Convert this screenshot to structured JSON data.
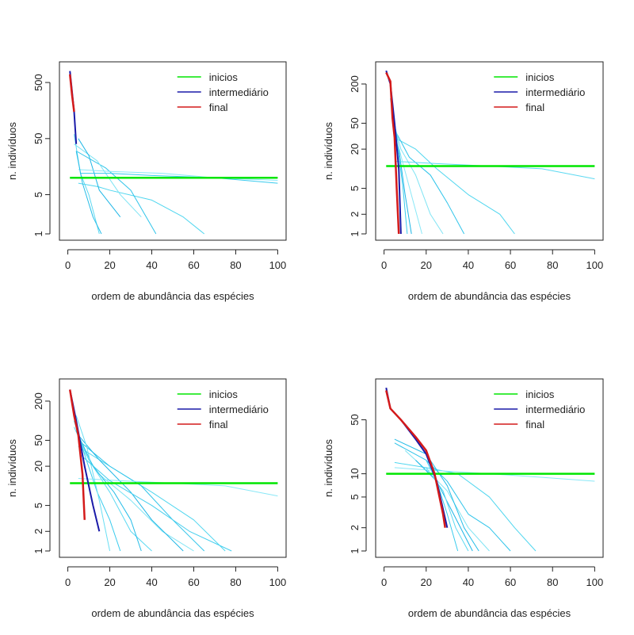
{
  "chart_data": [
    {
      "type": "line",
      "title": "",
      "xlabel": "ordem de abundância das espécies",
      "ylabel": "n. indivíduos",
      "xlim": [
        0,
        100
      ],
      "ylim_log": [
        1,
        900
      ],
      "y_scale": "log",
      "xticks": [
        0,
        20,
        40,
        60,
        80,
        100
      ],
      "yticks": [
        1,
        5,
        50,
        500
      ],
      "legend": {
        "position": "top-right",
        "entries": [
          {
            "label": "inicios",
            "color": "#00e600"
          },
          {
            "label": "intermediário",
            "color": "#1a1aa8"
          },
          {
            "label": "final",
            "color": "#d41a1a"
          }
        ]
      },
      "horizontal_line": {
        "series": "inicios",
        "y": 10
      },
      "final_curve": {
        "series": "final",
        "x": [
          1,
          2,
          3
        ],
        "y": [
          700,
          300,
          150
        ]
      },
      "intermediate_curve": {
        "series": "intermediário",
        "x": [
          1,
          2,
          3,
          4
        ],
        "y": [
          800,
          350,
          150,
          40
        ]
      },
      "cyan_tails": [
        {
          "x": [
            5,
            14,
            20,
            40,
            55,
            65
          ],
          "y": [
            8,
            7,
            6,
            4,
            2,
            1
          ]
        },
        {
          "x": [
            4,
            18,
            30,
            42
          ],
          "y": [
            30,
            15,
            6,
            1
          ]
        },
        {
          "x": [
            3,
            14,
            25,
            35
          ],
          "y": [
            40,
            20,
            5,
            2
          ]
        },
        {
          "x": [
            5,
            10,
            15,
            25
          ],
          "y": [
            50,
            25,
            6,
            2
          ]
        },
        {
          "x": [
            3,
            6,
            10,
            15
          ],
          "y": [
            60,
            12,
            5,
            1
          ]
        },
        {
          "x": [
            6,
            20,
            40,
            70,
            100
          ],
          "y": [
            12,
            12,
            11,
            10,
            8
          ]
        },
        {
          "x": [
            5,
            20,
            45,
            70,
            100
          ],
          "y": [
            14,
            13,
            12,
            10,
            9
          ]
        },
        {
          "x": [
            4,
            7,
            12,
            16
          ],
          "y": [
            30,
            8,
            2,
            1
          ]
        }
      ]
    },
    {
      "type": "line",
      "title": "",
      "xlabel": "ordem de abundância das espécies",
      "ylabel": "n. indivíduos",
      "xlim": [
        0,
        100
      ],
      "ylim_log": [
        1,
        350
      ],
      "y_scale": "log",
      "xticks": [
        0,
        20,
        40,
        60,
        80,
        100
      ],
      "yticks": [
        1,
        2,
        5,
        20,
        50,
        200
      ],
      "legend": {
        "position": "top-right",
        "entries": [
          {
            "label": "inicios",
            "color": "#00e600"
          },
          {
            "label": "intermediário",
            "color": "#1a1aa8"
          },
          {
            "label": "final",
            "color": "#d41a1a"
          }
        ]
      },
      "horizontal_line": {
        "series": "inicios",
        "y": 11
      },
      "final_curve": {
        "series": "final",
        "x": [
          1,
          3,
          4,
          5,
          6,
          7
        ],
        "y": [
          300,
          220,
          60,
          30,
          5,
          1
        ]
      },
      "intermediate_curve": {
        "series": "intermediário",
        "x": [
          1,
          3,
          5,
          7,
          8
        ],
        "y": [
          320,
          200,
          50,
          10,
          1
        ]
      },
      "cyan_tails": [
        {
          "x": [
            5,
            15,
            25,
            40,
            55,
            62
          ],
          "y": [
            30,
            20,
            10,
            4,
            2,
            1
          ]
        },
        {
          "x": [
            5,
            12,
            22,
            30,
            38
          ],
          "y": [
            40,
            15,
            8,
            3,
            1
          ]
        },
        {
          "x": [
            4,
            8,
            15,
            22,
            28
          ],
          "y": [
            60,
            20,
            8,
            2,
            1
          ]
        },
        {
          "x": [
            4,
            7,
            10,
            13
          ],
          "y": [
            80,
            20,
            4,
            1
          ]
        },
        {
          "x": [
            5,
            25,
            50,
            75,
            100
          ],
          "y": [
            13,
            12,
            11,
            10,
            7
          ]
        },
        {
          "x": [
            3,
            6,
            9,
            11
          ],
          "y": [
            120,
            30,
            5,
            1
          ]
        },
        {
          "x": [
            4,
            9,
            14,
            18
          ],
          "y": [
            50,
            12,
            3,
            1
          ]
        }
      ]
    },
    {
      "type": "line",
      "title": "",
      "xlabel": "ordem de abundância das espécies",
      "ylabel": "n. indivíduos",
      "xlim": [
        0,
        100
      ],
      "ylim_log": [
        1,
        350
      ],
      "y_scale": "log",
      "xticks": [
        0,
        20,
        40,
        60,
        80,
        100
      ],
      "yticks": [
        1,
        2,
        5,
        20,
        50,
        200
      ],
      "legend": {
        "position": "top-right",
        "entries": [
          {
            "label": "inicios",
            "color": "#00e600"
          },
          {
            "label": "intermediário",
            "color": "#1a1aa8"
          },
          {
            "label": "final",
            "color": "#d41a1a"
          }
        ]
      },
      "horizontal_line": {
        "series": "inicios",
        "y": 11
      },
      "final_curve": {
        "series": "final",
        "x": [
          1,
          3,
          5,
          7,
          8
        ],
        "y": [
          300,
          120,
          60,
          15,
          3
        ]
      },
      "intermediate_curve": {
        "series": "intermediário",
        "x": [
          1,
          4,
          8,
          12,
          15
        ],
        "y": [
          300,
          100,
          20,
          5,
          2
        ]
      },
      "cyan_tails": [
        {
          "x": [
            5,
            20,
            40,
            60,
            75
          ],
          "y": [
            40,
            20,
            8,
            3,
            1
          ]
        },
        {
          "x": [
            5,
            20,
            35,
            50,
            65
          ],
          "y": [
            50,
            20,
            10,
            3,
            1
          ]
        },
        {
          "x": [
            6,
            15,
            30,
            45,
            60
          ],
          "y": [
            40,
            15,
            6,
            2,
            1
          ]
        },
        {
          "x": [
            5,
            15,
            30,
            40,
            55
          ],
          "y": [
            60,
            25,
            8,
            3,
            1
          ]
        },
        {
          "x": [
            3,
            10,
            20,
            30,
            40
          ],
          "y": [
            80,
            25,
            8,
            2,
            1
          ]
        },
        {
          "x": [
            3,
            8,
            14,
            20,
            25
          ],
          "y": [
            100,
            30,
            8,
            3,
            1
          ]
        },
        {
          "x": [
            5,
            25,
            50,
            75,
            100
          ],
          "y": [
            13,
            12,
            11,
            10,
            7
          ]
        },
        {
          "x": [
            4,
            12,
            22,
            30,
            35
          ],
          "y": [
            70,
            20,
            8,
            3,
            1
          ]
        },
        {
          "x": [
            4,
            9,
            15,
            20
          ],
          "y": [
            120,
            40,
            6,
            1
          ]
        },
        {
          "x": [
            6,
            20,
            40,
            58,
            78
          ],
          "y": [
            30,
            12,
            5,
            2,
            1
          ]
        }
      ]
    },
    {
      "type": "line",
      "title": "",
      "xlabel": "ordem de abundância das espécies",
      "ylabel": "n. indivíduos",
      "xlim": [
        0,
        100
      ],
      "ylim_log": [
        1,
        140
      ],
      "y_scale": "log",
      "xticks": [
        0,
        20,
        40,
        60,
        80,
        100
      ],
      "yticks": [
        1,
        2,
        5,
        10,
        50
      ],
      "legend": {
        "position": "top-right",
        "entries": [
          {
            "label": "inicios",
            "color": "#00e600"
          },
          {
            "label": "intermediário",
            "color": "#1a1aa8"
          },
          {
            "label": "final",
            "color": "#d41a1a"
          }
        ]
      },
      "horizontal_line": {
        "series": "inicios",
        "y": 10
      },
      "final_curve": {
        "series": "final",
        "x": [
          1,
          3,
          8,
          15,
          20,
          24,
          28,
          29
        ],
        "y": [
          120,
          70,
          50,
          30,
          20,
          10,
          3,
          2
        ]
      },
      "intermediate_curve": {
        "series": "intermediário",
        "x": [
          1,
          3,
          8,
          15,
          20,
          25,
          30
        ],
        "y": [
          130,
          70,
          50,
          28,
          18,
          8,
          2
        ]
      },
      "cyan_tails": [
        {
          "x": [
            5,
            20,
            35,
            50,
            62,
            72
          ],
          "y": [
            14,
            12,
            10,
            5,
            2,
            1
          ]
        },
        {
          "x": [
            5,
            20,
            30,
            40,
            50,
            60
          ],
          "y": [
            25,
            15,
            8,
            3,
            2,
            1
          ]
        },
        {
          "x": [
            10,
            22,
            30,
            40,
            50
          ],
          "y": [
            20,
            10,
            6,
            2,
            1
          ]
        },
        {
          "x": [
            15,
            25,
            33,
            42
          ],
          "y": [
            15,
            8,
            3,
            1
          ]
        },
        {
          "x": [
            20,
            28,
            34,
            40
          ],
          "y": [
            12,
            6,
            2,
            1
          ]
        },
        {
          "x": [
            20,
            25,
            30,
            35
          ],
          "y": [
            15,
            8,
            3,
            1
          ]
        },
        {
          "x": [
            5,
            25,
            50,
            75,
            100
          ],
          "y": [
            12,
            11,
            10,
            9,
            8
          ]
        },
        {
          "x": [
            5,
            20,
            30,
            38,
            45
          ],
          "y": [
            28,
            18,
            7,
            2,
            1
          ]
        }
      ]
    }
  ]
}
